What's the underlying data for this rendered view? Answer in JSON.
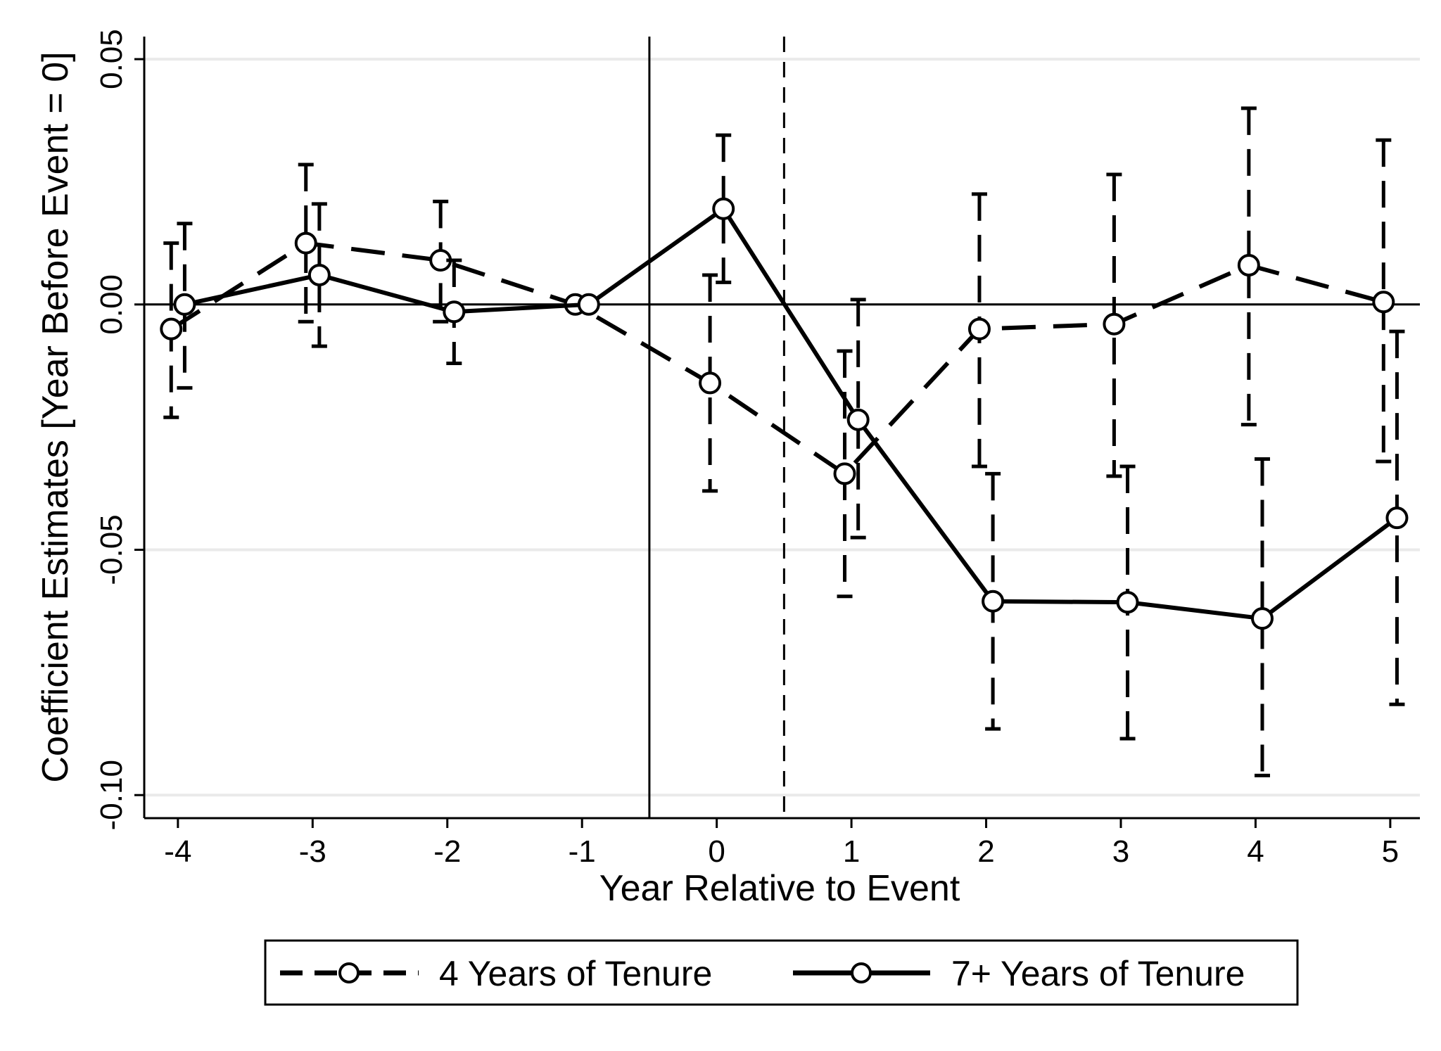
{
  "chart_data": {
    "type": "line",
    "title": "",
    "xlabel": "Year Relative to Event",
    "ylabel": "Coefficient Estimates [Year Before Event = 0]",
    "x": [
      -4,
      -3,
      -2,
      -1,
      0,
      1,
      2,
      3,
      4,
      5
    ],
    "xlim": [
      -4.25,
      5.22
    ],
    "ylim": [
      -0.1047,
      0.0546
    ],
    "x_ticks": [
      "-4",
      "-3",
      "-2",
      "-1",
      "0",
      "1",
      "2",
      "3",
      "4",
      "5"
    ],
    "y_ticks": [
      "0.05",
      "0.00",
      "-0.05",
      "-0.10"
    ],
    "y_tick_values": [
      0.05,
      0.0,
      -0.05,
      -0.1
    ],
    "grid": true,
    "reference_lines": {
      "horizontal_y": 0.0,
      "event_line_solid_x": -0.5,
      "event_line_dashed_x": 0.5
    },
    "series": [
      {
        "name": "4 Years of Tenure",
        "line_style": "dashed",
        "x_offset": -0.05,
        "values": [
          -0.005,
          0.0125,
          0.009,
          0.0,
          -0.016,
          -0.0345,
          -0.005,
          -0.004,
          0.008,
          0.0005
        ],
        "ci_low": [
          -0.023,
          -0.0035,
          -0.0035,
          0.0,
          -0.038,
          -0.0595,
          -0.033,
          -0.035,
          -0.0245,
          -0.032
        ],
        "ci_high": [
          0.0125,
          0.0285,
          0.021,
          0.0,
          0.006,
          -0.0095,
          0.0225,
          0.0265,
          0.04,
          0.0335
        ]
      },
      {
        "name": "7+ Years of Tenure",
        "line_style": "solid",
        "x_offset": 0.05,
        "values": [
          0.0,
          0.006,
          -0.0015,
          0.0,
          0.0195,
          -0.0235,
          -0.0605,
          -0.0607,
          -0.064,
          -0.0435
        ],
        "ci_low": [
          -0.017,
          -0.0085,
          -0.012,
          0.0,
          0.0045,
          -0.0475,
          -0.0865,
          -0.0885,
          -0.096,
          -0.0815
        ],
        "ci_high": [
          0.0165,
          0.0205,
          0.009,
          0.0,
          0.0345,
          0.001,
          -0.0345,
          -0.033,
          -0.0315,
          -0.0055
        ]
      }
    ],
    "legend": {
      "position": "bottom",
      "entries": [
        "4 Years of Tenure",
        "7+ Years of Tenure"
      ]
    }
  }
}
